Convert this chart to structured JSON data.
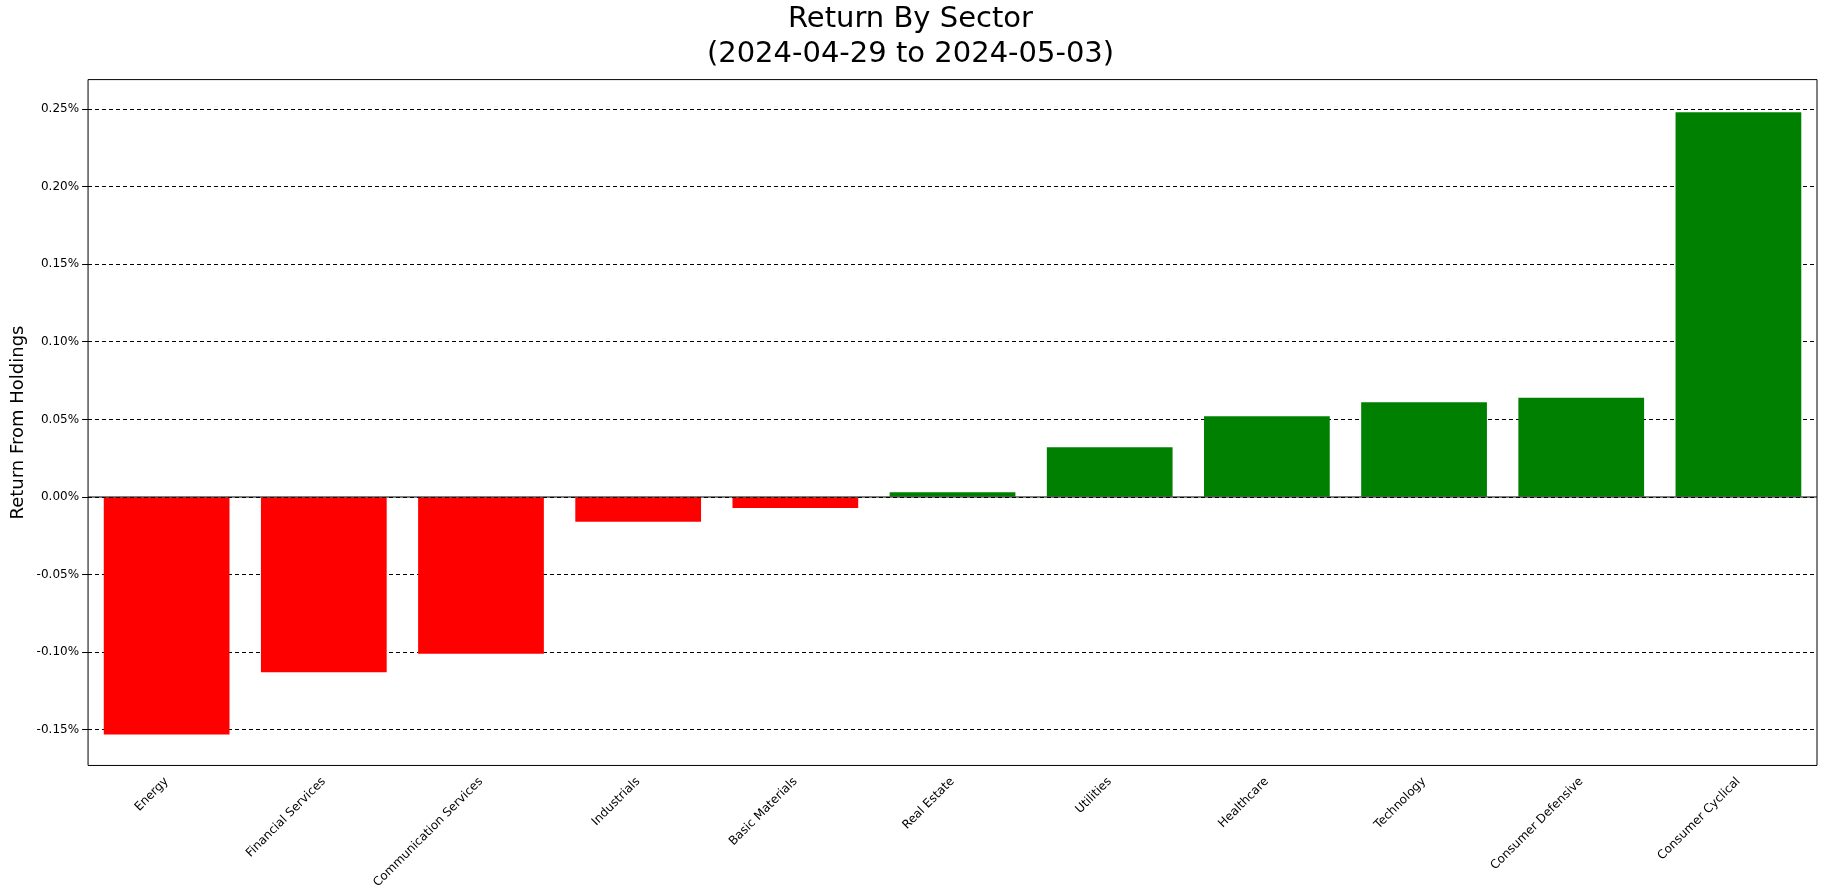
{
  "chart_data": {
    "type": "bar",
    "title": "Return By Sector\n(2024-04-29 to 2024-05-03)",
    "ylabel": "Return From Holdings",
    "categories": [
      "Energy",
      "Financial Services",
      "Communication Services",
      "Industrials",
      "Basic Materials",
      "Real Estate",
      "Utilities",
      "Healthcare",
      "Technology",
      "Consumer Defensive",
      "Consumer Cyclical"
    ],
    "values": [
      -0.153,
      -0.113,
      -0.101,
      -0.016,
      -0.007,
      0.003,
      0.032,
      0.052,
      0.061,
      0.064,
      0.248
    ],
    "colors": [
      "#ff0000",
      "#ff0000",
      "#ff0000",
      "#ff0000",
      "#ff0000",
      "#008000",
      "#008000",
      "#008000",
      "#008000",
      "#008000",
      "#008000"
    ],
    "ylim": [
      -0.173,
      0.269
    ],
    "yticks": [
      {
        "value": -0.15,
        "label": "-0.15%"
      },
      {
        "value": -0.1,
        "label": "-0.10%"
      },
      {
        "value": -0.05,
        "label": "-0.05%"
      },
      {
        "value": 0,
        "label": "0.00%"
      },
      {
        "value": 0.05,
        "label": "0.05%"
      },
      {
        "value": 0.1,
        "label": "0.10%"
      },
      {
        "value": 0.15,
        "label": "0.15%"
      },
      {
        "value": 0.2,
        "label": "0.20%"
      },
      {
        "value": 0.25,
        "label": "0.25%"
      }
    ],
    "grid": "y",
    "ref_lines": [
      {
        "axis": "y",
        "value": 0,
        "color": "#000000"
      }
    ]
  }
}
